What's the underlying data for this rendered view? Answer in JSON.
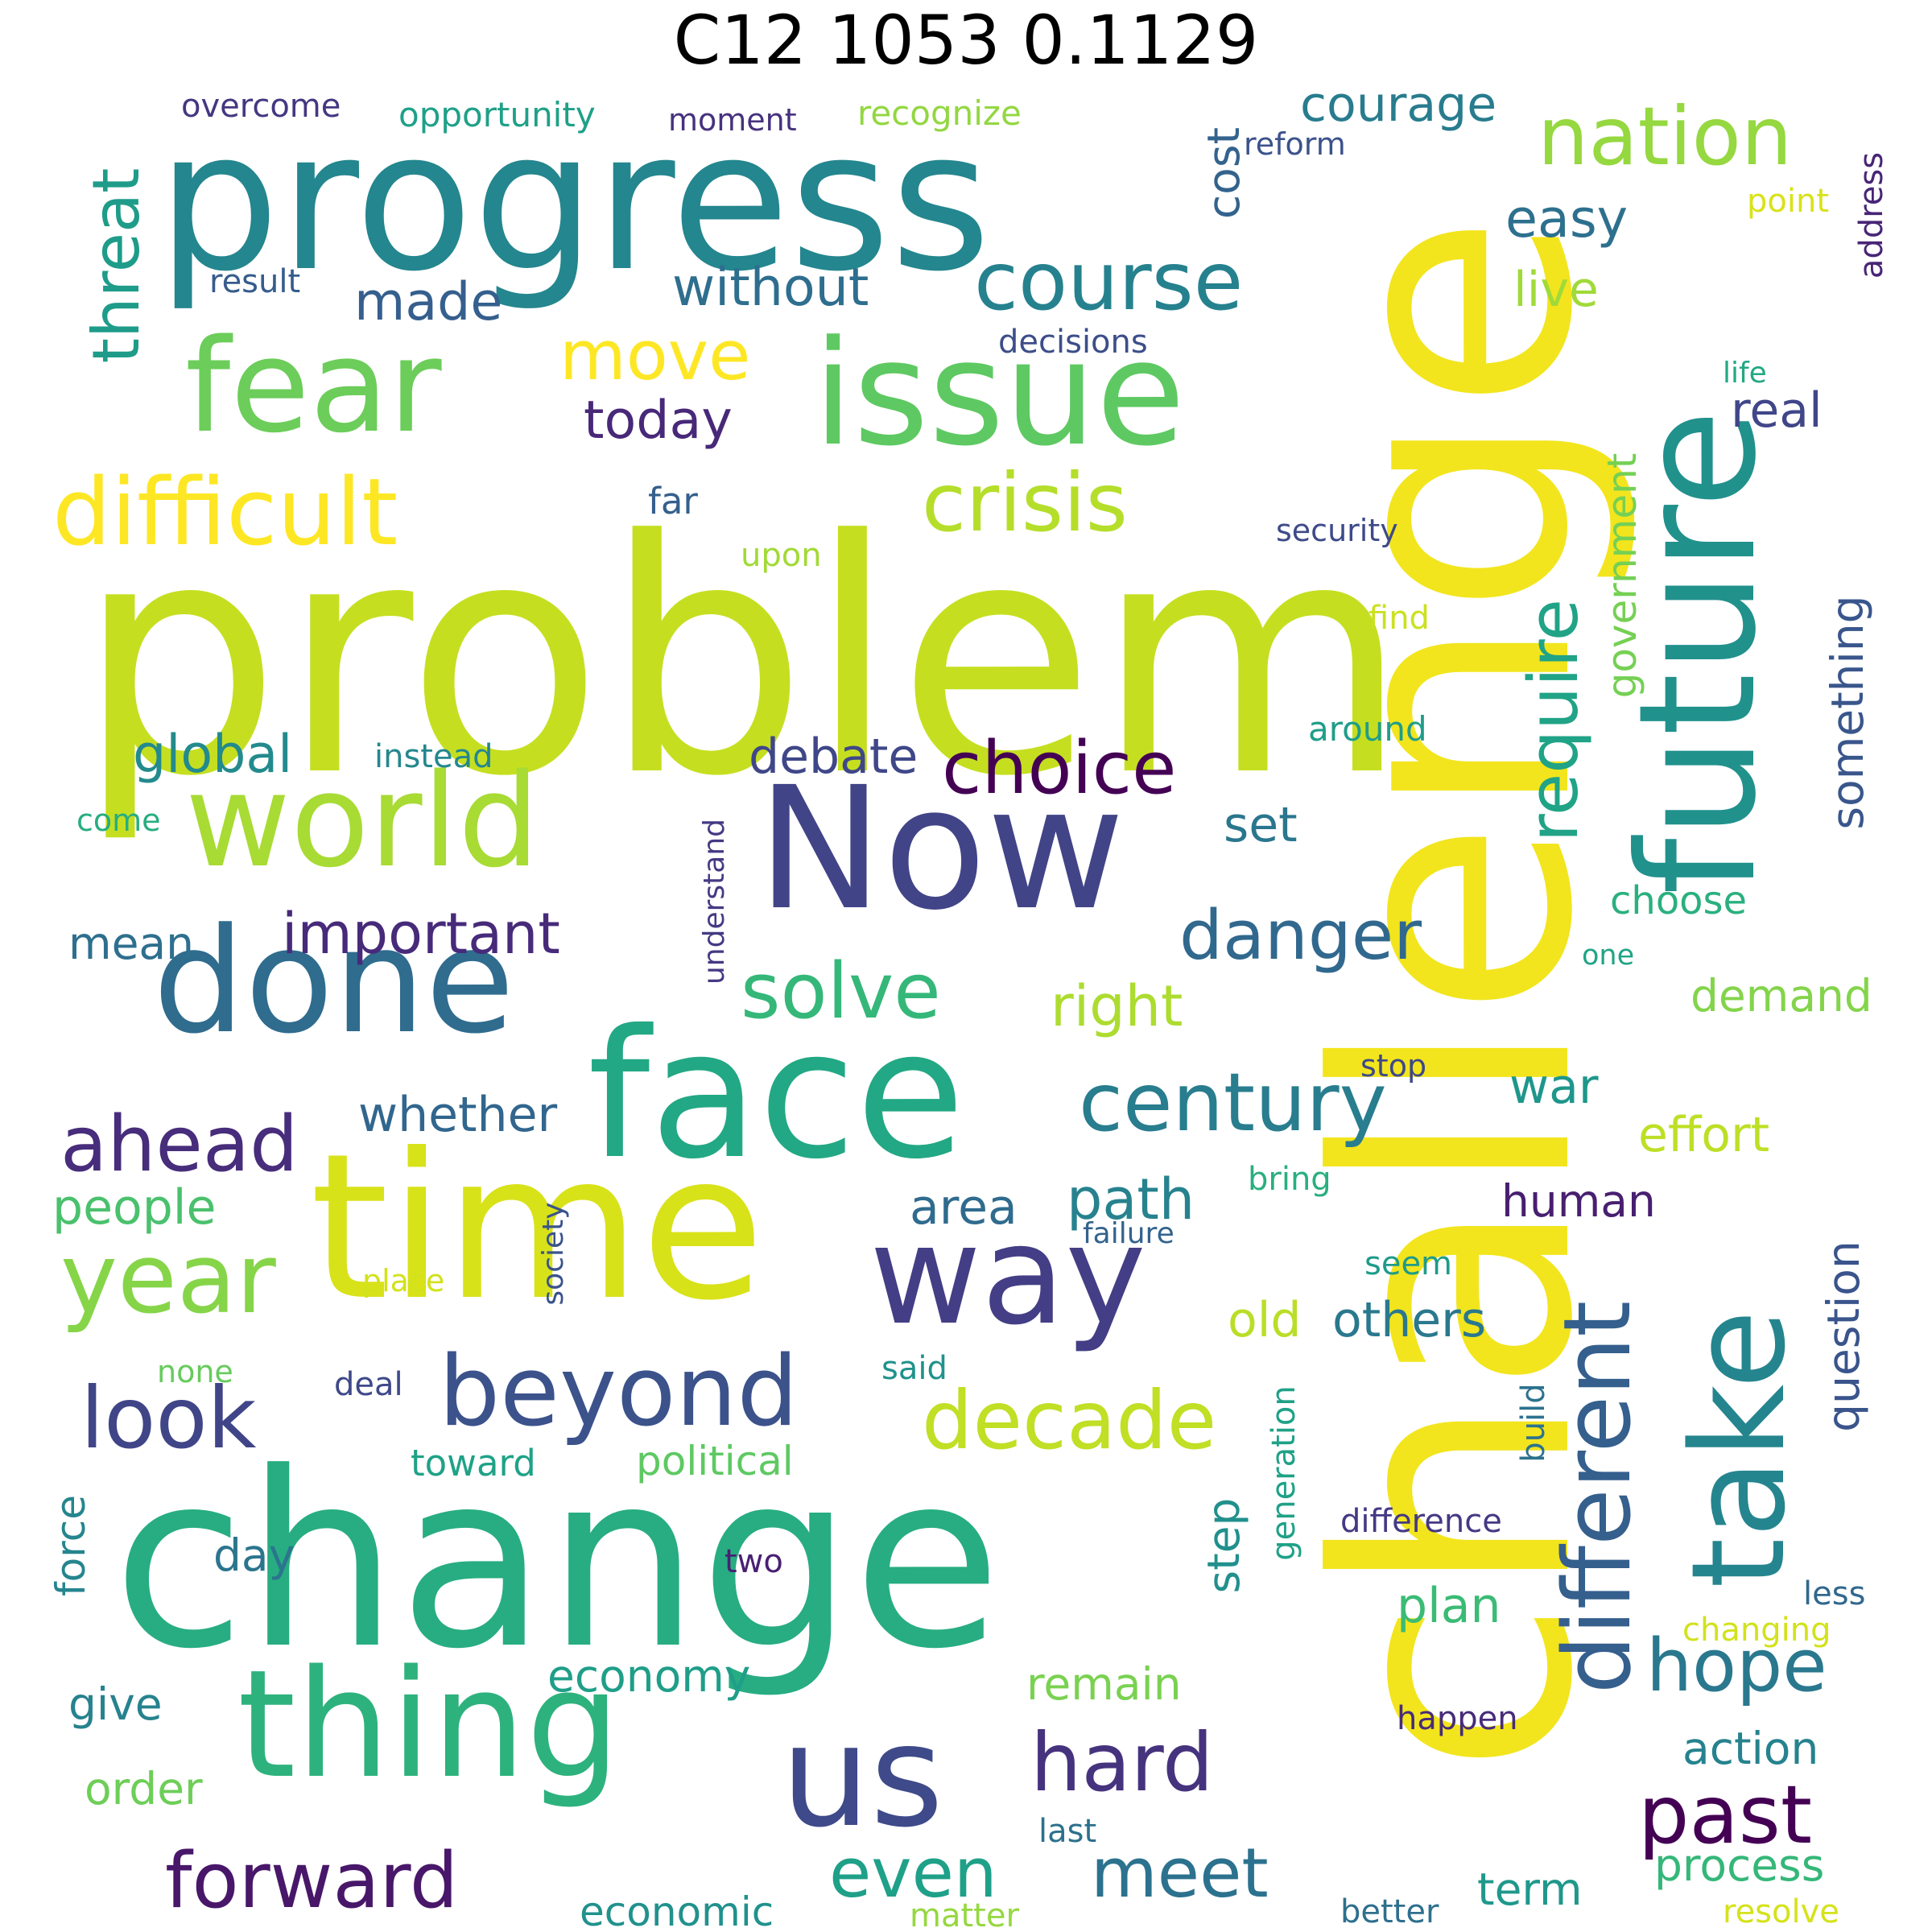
{
  "title": "C12 1053 0.1129",
  "words": [
    {
      "text": "problem",
      "color": "#c5df20"
    },
    {
      "text": "challenge",
      "color": "#f2e51d"
    },
    {
      "text": "change",
      "color": "#27ad81"
    },
    {
      "text": "progress",
      "color": "#24868e"
    },
    {
      "text": "future",
      "color": "#21918c"
    },
    {
      "text": "time",
      "color": "#d8e219"
    },
    {
      "text": "face",
      "color": "#22a884"
    },
    {
      "text": "Now",
      "color": "#414487"
    },
    {
      "text": "issue",
      "color": "#5ec962"
    },
    {
      "text": "thing",
      "color": "#2db27d"
    },
    {
      "text": "done",
      "color": "#2f6c8e"
    },
    {
      "text": "world",
      "color": "#a8db34"
    },
    {
      "text": "take",
      "color": "#25858e"
    },
    {
      "text": "fear",
      "color": "#6ccd5a"
    },
    {
      "text": "us",
      "color": "#3e4a89"
    },
    {
      "text": "way",
      "color": "#433e85"
    },
    {
      "text": "difficult",
      "color": "#fde725"
    },
    {
      "text": "beyond",
      "color": "#3b528b"
    },
    {
      "text": "year",
      "color": "#86d549"
    },
    {
      "text": "different",
      "color": "#355f8d"
    },
    {
      "text": "course",
      "color": "#26818e"
    },
    {
      "text": "nation",
      "color": "#95d840"
    },
    {
      "text": "crisis",
      "color": "#b5de2b"
    },
    {
      "text": "century",
      "color": "#287d8e"
    },
    {
      "text": "decade",
      "color": "#c0df25"
    },
    {
      "text": "look",
      "color": "#404588"
    },
    {
      "text": "hard",
      "color": "#46337e"
    },
    {
      "text": "past",
      "color": "#440154"
    },
    {
      "text": "solve",
      "color": "#35b779"
    },
    {
      "text": "forward",
      "color": "#481769"
    },
    {
      "text": "ahead",
      "color": "#472d7b"
    },
    {
      "text": "choice",
      "color": "#440154"
    },
    {
      "text": "danger",
      "color": "#31688e"
    },
    {
      "text": "hope",
      "color": "#2a788e"
    },
    {
      "text": "move",
      "color": "#fde725"
    },
    {
      "text": "require",
      "color": "#20a386"
    },
    {
      "text": "even",
      "color": "#1fa088"
    },
    {
      "text": "meet",
      "color": "#2c728e"
    },
    {
      "text": "threat",
      "color": "#1e9c89"
    },
    {
      "text": "important",
      "color": "#472a7a"
    },
    {
      "text": "right",
      "color": "#addc30"
    },
    {
      "text": "path",
      "color": "#26828e"
    },
    {
      "text": "made",
      "color": "#355f8d"
    },
    {
      "text": "without",
      "color": "#2e6e8e"
    },
    {
      "text": "courage",
      "color": "#287c8e"
    },
    {
      "text": "cost",
      "color": "#33638d"
    },
    {
      "text": "today",
      "color": "#482878"
    },
    {
      "text": "easy",
      "color": "#2d708e"
    },
    {
      "text": "live",
      "color": "#a0da39"
    },
    {
      "text": "real",
      "color": "#404688"
    },
    {
      "text": "global",
      "color": "#238a8d"
    },
    {
      "text": "debate",
      "color": "#3f4788"
    },
    {
      "text": "set",
      "color": "#2a768e"
    },
    {
      "text": "whether",
      "color": "#31668e"
    },
    {
      "text": "war",
      "color": "#1f968b"
    },
    {
      "text": "effort",
      "color": "#bddf26"
    },
    {
      "text": "people",
      "color": "#4ac16d"
    },
    {
      "text": "area",
      "color": "#2f6b8e"
    },
    {
      "text": "human",
      "color": "#481f70"
    },
    {
      "text": "others",
      "color": "#2a788e"
    },
    {
      "text": "old",
      "color": "#bade28"
    },
    {
      "text": "question",
      "color": "#3a548c"
    },
    {
      "text": "something",
      "color": "#39568c"
    },
    {
      "text": "government",
      "color": "#75d054"
    },
    {
      "text": "mean",
      "color": "#2e6f8e"
    },
    {
      "text": "demand",
      "color": "#84d44b"
    },
    {
      "text": "choose",
      "color": "#2ab07f"
    },
    {
      "text": "step",
      "color": "#21908d"
    },
    {
      "text": "plan",
      "color": "#3bbb75"
    },
    {
      "text": "economy",
      "color": "#1f9e89"
    },
    {
      "text": "remain",
      "color": "#7ad151"
    },
    {
      "text": "action",
      "color": "#26828e"
    },
    {
      "text": "process",
      "color": "#35b779"
    },
    {
      "text": "term",
      "color": "#1f988b"
    },
    {
      "text": "give",
      "color": "#26828e"
    },
    {
      "text": "order",
      "color": "#6ece58"
    },
    {
      "text": "day",
      "color": "#2b758e"
    },
    {
      "text": "force",
      "color": "#25858e"
    },
    {
      "text": "economic",
      "color": "#21918c"
    },
    {
      "text": "political",
      "color": "#5ec962"
    },
    {
      "text": "toward",
      "color": "#1fa287"
    },
    {
      "text": "deal",
      "color": "#3e4989"
    },
    {
      "text": "build",
      "color": "#2c728e"
    },
    {
      "text": "generation",
      "color": "#1fa187"
    },
    {
      "text": "difference",
      "color": "#443983"
    },
    {
      "text": "two",
      "color": "#482173"
    },
    {
      "text": "less",
      "color": "#31688e"
    },
    {
      "text": "changing",
      "color": "#d2e21b"
    },
    {
      "text": "happen",
      "color": "#472c7a"
    },
    {
      "text": "last",
      "color": "#2d708e"
    },
    {
      "text": "better",
      "color": "#2e6f8e"
    },
    {
      "text": "resolve",
      "color": "#d5e21a"
    },
    {
      "text": "matter",
      "color": "#95d840"
    },
    {
      "text": "overcome",
      "color": "#453781"
    },
    {
      "text": "opportunity",
      "color": "#1fa088"
    },
    {
      "text": "moment",
      "color": "#46327e"
    },
    {
      "text": "recognize",
      "color": "#93d741"
    },
    {
      "text": "reform",
      "color": "#3b528b"
    },
    {
      "text": "address",
      "color": "#482576"
    },
    {
      "text": "point",
      "color": "#d8e219"
    },
    {
      "text": "result",
      "color": "#365c8d"
    },
    {
      "text": "decisions",
      "color": "#3d4e8a"
    },
    {
      "text": "life",
      "color": "#22a884"
    },
    {
      "text": "security",
      "color": "#3e4a89"
    },
    {
      "text": "upon",
      "color": "#a2da37"
    },
    {
      "text": "far",
      "color": "#355f8d"
    },
    {
      "text": "find",
      "color": "#cae11f"
    },
    {
      "text": "around",
      "color": "#1f9e89"
    },
    {
      "text": "instead",
      "color": "#24878e"
    },
    {
      "text": "come",
      "color": "#27ad81"
    },
    {
      "text": "understand",
      "color": "#443a83"
    },
    {
      "text": "one",
      "color": "#20a486"
    },
    {
      "text": "stop",
      "color": "#3f4889"
    },
    {
      "text": "bring",
      "color": "#29af7f"
    },
    {
      "text": "failure",
      "color": "#33638d"
    },
    {
      "text": "society",
      "color": "#3a538b"
    },
    {
      "text": "place",
      "color": "#d2e21b"
    },
    {
      "text": "seem",
      "color": "#1e9b8a"
    },
    {
      "text": "none",
      "color": "#66cb5d"
    },
    {
      "text": "said",
      "color": "#21918c"
    }
  ]
}
